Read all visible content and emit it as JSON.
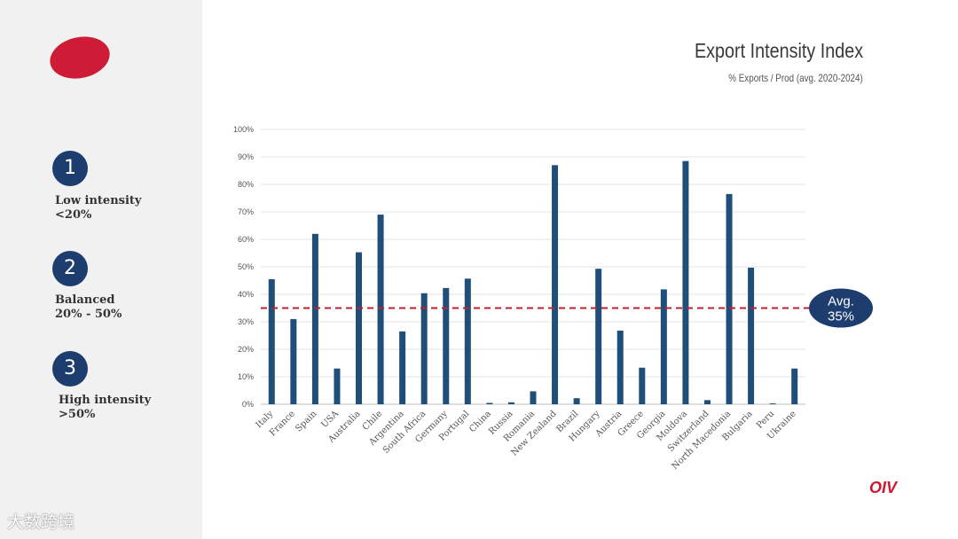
{
  "header": {
    "title": "Export Intensity Index",
    "subtitle": "% Exports / Prod (avg. 2020-2024)"
  },
  "legend_steps": [
    {
      "number": "1",
      "line1": "Low intensity",
      "line2": "<20%"
    },
    {
      "number": "2",
      "line1": "Balanced",
      "line2": "20% - 50%"
    },
    {
      "number": "3",
      "line1": "High intensity",
      "line2": ">50%"
    }
  ],
  "brand": {
    "oiv": "OIV",
    "watermark": "大数跨境"
  },
  "colors": {
    "bar": "#1f4e79",
    "avg_line": "#c0202e",
    "avg_badge": "#1c3d6e",
    "logo": "#cf1c36",
    "step_circle": "#1c3d6e"
  },
  "chart_data": {
    "type": "bar",
    "categories": [
      "Italy",
      "France",
      "Spain",
      "USA",
      "Australia",
      "Chile",
      "Argentina",
      "South Africa",
      "Germany",
      "Portugal",
      "China",
      "Russia",
      "Romania",
      "New Zealand",
      "Brazil",
      "Hungary",
      "Austria",
      "Greece",
      "Georgia",
      "Moldova",
      "Switzerland",
      "North Macedonia",
      "Bulgaria",
      "Peru",
      "Ukraine"
    ],
    "values": [
      45.5,
      31,
      62,
      13,
      55.3,
      69,
      26.5,
      40.4,
      42.3,
      45.7,
      0.5,
      0.7,
      4.7,
      87,
      2.2,
      49.3,
      26.8,
      13.3,
      41.8,
      88.5,
      1.5,
      76.5,
      49.7,
      0.3,
      13
    ],
    "ylim": [
      0,
      100
    ],
    "yticks": [
      "0%",
      "10%",
      "20%",
      "30%",
      "40%",
      "50%",
      "60%",
      "70%",
      "80%",
      "90%",
      "100%"
    ],
    "grid": true,
    "average": {
      "value": 35,
      "label_line1": "Avg.",
      "label_line2": "35%"
    }
  }
}
